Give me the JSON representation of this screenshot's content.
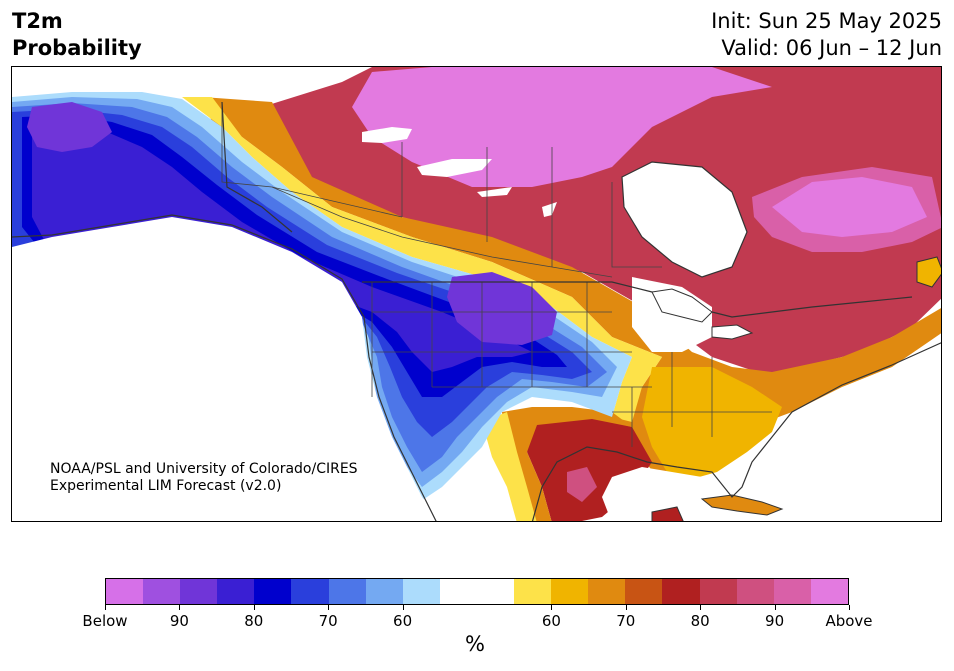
{
  "title": {
    "variable": "T2m",
    "subtitle": "Probability",
    "init": "Init: Sun 25 May 2025",
    "valid": "Valid: 06 Jun – 12 Jun"
  },
  "map": {
    "region": "North America",
    "credit_line1": "NOAA/PSL and University of Colorado/CIRES",
    "credit_line2": "Experimental LIM Forecast (v2.0)"
  },
  "colorbar": {
    "colors": [
      "#d670e8",
      "#9f50e0",
      "#7035d8",
      "#3a1fd3",
      "#0000cd",
      "#2a3fdc",
      "#4d76e8",
      "#74a9f2",
      "#acdcfc",
      "#ffffff",
      "#ffffff",
      "#fde249",
      "#f0b400",
      "#e08a10",
      "#c85414",
      "#b02020",
      "#c13a50",
      "#cf5080",
      "#d960a8",
      "#e37ae0"
    ],
    "tick_labels": [
      "Below",
      "90",
      "80",
      "70",
      "60",
      "60",
      "70",
      "80",
      "90",
      "Above"
    ],
    "unit": "%"
  },
  "legend_colors": {
    "below_strong": "#7035d8",
    "below": "#0000cd",
    "neutral": "#ffffff",
    "above": "#f0b400",
    "above_strong": "#d960a8"
  }
}
